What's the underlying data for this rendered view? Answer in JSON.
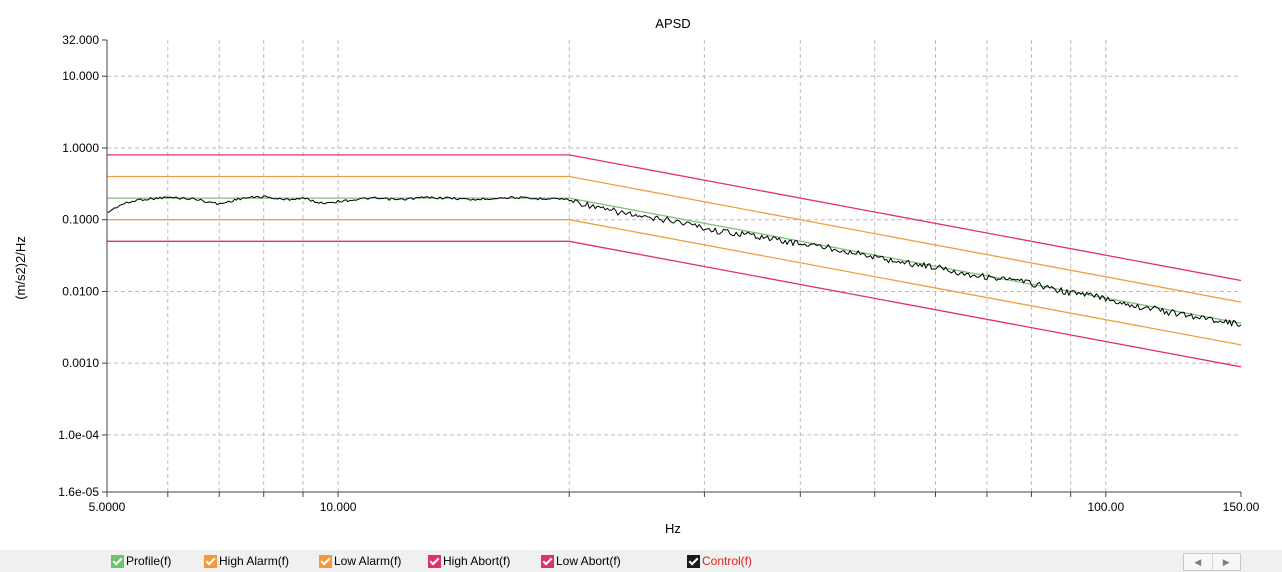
{
  "chart_data": {
    "type": "line",
    "title": "APSD",
    "xlabel": "Hz",
    "ylabel": "(m/s2)2/Hz",
    "xscale": "log",
    "yscale": "log",
    "xlim": [
      5.0,
      150.0
    ],
    "ylim": [
      1.6e-05,
      32.0
    ],
    "grid": true,
    "x_tick_labels": [
      {
        "value": 5.0,
        "label": "5.0000"
      },
      {
        "value": 10.0,
        "label": "10.000"
      },
      {
        "value": 100.0,
        "label": "100.00"
      },
      {
        "value": 150.0,
        "label": "150.00"
      }
    ],
    "x_minor_ticks": [
      6,
      7,
      8,
      9,
      20,
      30,
      40,
      50,
      60,
      70,
      80,
      90
    ],
    "y_tick_labels": [
      {
        "value": 1.6e-05,
        "label": "1.6e-05"
      },
      {
        "value": 0.0001,
        "label": "1.0e-04"
      },
      {
        "value": 0.001,
        "label": "0.0010"
      },
      {
        "value": 0.01,
        "label": "0.0100"
      },
      {
        "value": 0.1,
        "label": "0.1000"
      },
      {
        "value": 1.0,
        "label": "1.0000"
      },
      {
        "value": 10.0,
        "label": "10.000"
      },
      {
        "value": 32.0,
        "label": "32.000"
      }
    ],
    "series": [
      {
        "name": "Profile(f)",
        "color": "#7bc47b",
        "x": [
          5.0,
          20.0,
          150.0
        ],
        "values": [
          0.2,
          0.2,
          0.0036
        ]
      },
      {
        "name": "High Alarm(f)",
        "color": "#f0a040",
        "x": [
          5.0,
          20.0,
          150.0
        ],
        "values": [
          0.4,
          0.4,
          0.0071
        ]
      },
      {
        "name": "Low Alarm(f)",
        "color": "#f0a040",
        "x": [
          5.0,
          20.0,
          150.0
        ],
        "values": [
          0.1,
          0.1,
          0.0018
        ]
      },
      {
        "name": "High Abort(f)",
        "color": "#e0306e",
        "x": [
          5.0,
          20.0,
          150.0
        ],
        "values": [
          0.8,
          0.8,
          0.0142
        ]
      },
      {
        "name": "Low Abort(f)",
        "color": "#e0306e",
        "x": [
          5.0,
          20.0,
          150.0
        ],
        "values": [
          0.05,
          0.05,
          0.00089
        ]
      },
      {
        "name": "Control(f)",
        "color": "#000000",
        "x": [
          5.0,
          5.2,
          5.5,
          6.0,
          6.5,
          7.0,
          7.5,
          8.0,
          8.5,
          9.0,
          9.5,
          10.0,
          11.0,
          12.0,
          13.0,
          14.0,
          15.0,
          16.0,
          17.0,
          18.0,
          19.0,
          20.0,
          21.0,
          22.0,
          23.0,
          24.0,
          25.0,
          27.0,
          29.0,
          31.0,
          33.0,
          35.0,
          38.0,
          41.0,
          44.0,
          47.0,
          50.0,
          55.0,
          60.0,
          65.0,
          70.0,
          75.0,
          80.0,
          85.0,
          90.0,
          95.0,
          100.0,
          105.0,
          110.0,
          115.0,
          120.0,
          125.0,
          130.0,
          135.0,
          140.0,
          145.0,
          150.0
        ],
        "values": [
          0.125,
          0.16,
          0.19,
          0.205,
          0.195,
          0.165,
          0.2,
          0.21,
          0.19,
          0.2,
          0.17,
          0.18,
          0.2,
          0.19,
          0.205,
          0.2,
          0.19,
          0.2,
          0.205,
          0.195,
          0.2,
          0.19,
          0.165,
          0.14,
          0.13,
          0.12,
          0.105,
          0.1,
          0.085,
          0.07,
          0.065,
          0.06,
          0.05,
          0.045,
          0.04,
          0.035,
          0.03,
          0.025,
          0.022,
          0.018,
          0.016,
          0.0145,
          0.013,
          0.011,
          0.0095,
          0.009,
          0.008,
          0.007,
          0.0062,
          0.0058,
          0.0052,
          0.0048,
          0.0045,
          0.0042,
          0.004,
          0.0037,
          0.0034
        ]
      }
    ]
  },
  "legend": {
    "items": [
      {
        "label": "Profile(f)",
        "color": "#6cc36c",
        "text_color": "#000000"
      },
      {
        "label": "High Alarm(f)",
        "color": "#f29a3a",
        "text_color": "#000000"
      },
      {
        "label": "Low Alarm(f)",
        "color": "#f29a3a",
        "text_color": "#000000"
      },
      {
        "label": "High Abort(f)",
        "color": "#e0306e",
        "text_color": "#000000"
      },
      {
        "label": "Low Abort(f)",
        "color": "#e0306e",
        "text_color": "#000000"
      },
      {
        "label": "Control(f)",
        "color": "#1a1a1a",
        "text_color": "#e02020"
      }
    ]
  },
  "scroll": {
    "left_icon": "◀",
    "right_icon": "▶"
  }
}
